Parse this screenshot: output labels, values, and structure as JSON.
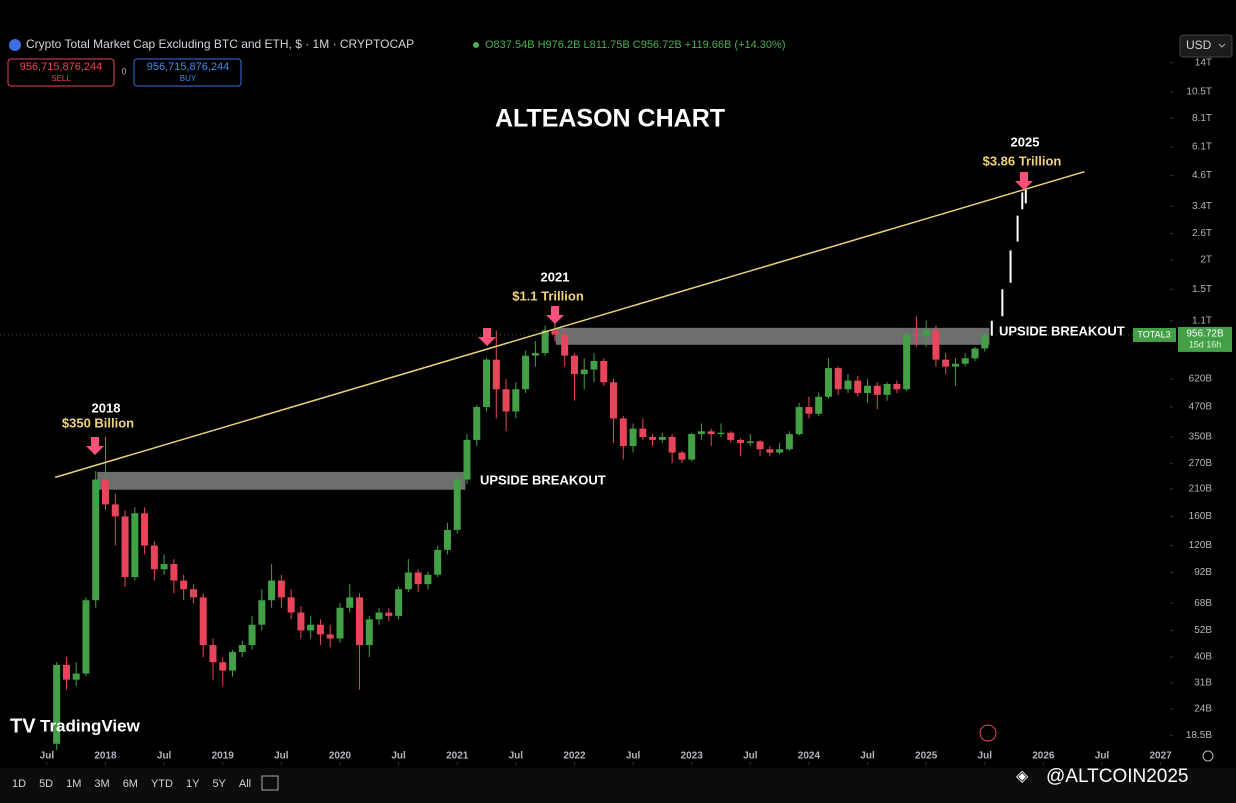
{
  "header": {
    "symbol": "Crypto Total Market Cap Excluding BTC and ETH, $ · 1M · CRYPTOCAP",
    "ohlc": "O837.54B H976.2B L811.75B C956.72B +119.66B (+14.30%)",
    "sell_price": "956,715,876,244",
    "sell": "SELL",
    "spread": 0,
    "buy_price": "956,715,876,244",
    "buy": "BUY",
    "currency": "USD"
  },
  "chart_data": {
    "type": "candlestick",
    "title": "ALTEASON CHART",
    "y_scale": "log",
    "ylim": [
      13.8,
      15100
    ],
    "yticks": [
      {
        "value": 14000,
        "label": "14T"
      },
      {
        "value": 10500,
        "label": "10.5T"
      },
      {
        "value": 8100,
        "label": "8.1T"
      },
      {
        "value": 6100,
        "label": "6.1T"
      },
      {
        "value": 4600,
        "label": "4.6T"
      },
      {
        "value": 3400,
        "label": "3.4T"
      },
      {
        "value": 2600,
        "label": "2.6T"
      },
      {
        "value": 2000,
        "label": "2T"
      },
      {
        "value": 1500,
        "label": "1.5T"
      },
      {
        "value": 1100,
        "label": "1.1T"
      },
      {
        "value": 620,
        "label": "620B"
      },
      {
        "value": 470,
        "label": "470B"
      },
      {
        "value": 350,
        "label": "350B"
      },
      {
        "value": 270,
        "label": "270B"
      },
      {
        "value": 210,
        "label": "210B"
      },
      {
        "value": 160,
        "label": "160B"
      },
      {
        "value": 120,
        "label": "120B"
      },
      {
        "value": 92,
        "label": "92B"
      },
      {
        "value": 68,
        "label": "68B"
      },
      {
        "value": 52,
        "label": "52B"
      },
      {
        "value": 40,
        "label": "40B"
      },
      {
        "value": 31,
        "label": "31B"
      },
      {
        "value": 24,
        "label": "24B"
      },
      {
        "value": 18.5,
        "label": "18.5B"
      }
    ],
    "xlim": [
      2017.1,
      2027.08
    ],
    "xticks": [
      {
        "value": 2017.5,
        "label": "Jul"
      },
      2018,
      {
        "value": 2018.5,
        "label": "Jul"
      },
      2019,
      {
        "value": 2019.5,
        "label": "Jul"
      },
      2020,
      {
        "value": 2020.5,
        "label": "Jul"
      },
      2021,
      {
        "value": 2021.5,
        "label": "Jul"
      },
      2022,
      {
        "value": 2022.5,
        "label": "Jul"
      },
      2023,
      {
        "value": 2023.5,
        "label": "Jul"
      },
      2024,
      {
        "value": 2024.5,
        "label": "Jul"
      },
      2025,
      {
        "value": 2025.5,
        "label": "Jul"
      },
      2026,
      {
        "value": 2026.5,
        "label": "Jul"
      },
      2027
    ],
    "candles": {
      "up_color": "#43a047",
      "down_color": "#e8455a",
      "x": [
        "2017-08",
        "2017-09",
        "2017-10",
        "2017-11",
        "2017-12",
        "2018-01",
        "2018-02",
        "2018-03",
        "2018-04",
        "2018-05",
        "2018-06",
        "2018-07",
        "2018-08",
        "2018-09",
        "2018-10",
        "2018-11",
        "2018-12",
        "2019-01",
        "2019-02",
        "2019-03",
        "2019-04",
        "2019-05",
        "2019-06",
        "2019-07",
        "2019-08",
        "2019-09",
        "2019-10",
        "2019-11",
        "2019-12",
        "2020-01",
        "2020-02",
        "2020-03",
        "2020-04",
        "2020-05",
        "2020-06",
        "2020-07",
        "2020-08",
        "2020-09",
        "2020-10",
        "2020-11",
        "2020-12",
        "2021-01",
        "2021-02",
        "2021-03",
        "2021-04",
        "2021-05",
        "2021-06",
        "2021-07",
        "2021-08",
        "2021-09",
        "2021-10",
        "2021-11",
        "2021-12",
        "2022-01",
        "2022-02",
        "2022-03",
        "2022-04",
        "2022-05",
        "2022-06",
        "2022-07",
        "2022-08",
        "2022-09",
        "2022-10",
        "2022-11",
        "2022-12",
        "2023-01",
        "2023-02",
        "2023-03",
        "2023-04",
        "2023-05",
        "2023-06",
        "2023-07",
        "2023-08",
        "2023-09",
        "2023-10",
        "2023-11",
        "2023-12",
        "2024-01",
        "2024-02",
        "2024-03",
        "2024-04",
        "2024-05",
        "2024-06",
        "2024-07",
        "2024-08",
        "2024-09",
        "2024-10",
        "2024-11",
        "2024-12",
        "2025-01",
        "2025-02",
        "2025-03",
        "2025-04",
        "2025-05",
        "2025-06",
        "2025-07"
      ],
      "open": [
        17,
        37,
        32,
        34,
        70,
        230,
        180,
        160,
        88,
        165,
        120,
        95,
        100,
        85,
        78,
        72,
        45,
        38,
        35,
        42,
        45,
        55,
        70,
        85,
        72,
        62,
        52,
        55,
        50,
        48,
        65,
        72,
        45,
        58,
        62,
        60,
        78,
        92,
        82,
        90,
        115,
        140,
        230,
        340,
        470,
        750,
        560,
        450,
        560,
        780,
        800,
        1000,
        960,
        780,
        650,
        680,
        740,
        600,
        420,
        320,
        380,
        350,
        340,
        350,
        300,
        280,
        360,
        370,
        360,
        365,
        340,
        330,
        335,
        310,
        300,
        310,
        360,
        470,
        440,
        520,
        690,
        560,
        610,
        540,
        580,
        530,
        590,
        560,
        960,
        950,
        1000,
        750,
        700,
        720,
        760,
        837.54
      ],
      "high": [
        38,
        40,
        38,
        72,
        250,
        350,
        200,
        170,
        175,
        175,
        125,
        110,
        105,
        90,
        82,
        75,
        48,
        40,
        43,
        47,
        60,
        78,
        100,
        90,
        78,
        66,
        60,
        58,
        55,
        68,
        82,
        75,
        60,
        65,
        65,
        80,
        105,
        95,
        93,
        120,
        150,
        240,
        360,
        480,
        760,
        1000,
        620,
        600,
        820,
        900,
        1050,
        1130,
        1000,
        800,
        760,
        800,
        760,
        620,
        430,
        400,
        420,
        360,
        365,
        360,
        305,
        365,
        400,
        380,
        400,
        370,
        345,
        360,
        340,
        320,
        330,
        370,
        490,
        520,
        540,
        760,
        700,
        650,
        640,
        620,
        600,
        600,
        610,
        980,
        1150,
        1100,
        1050,
        800,
        760,
        800,
        850,
        976.2
      ],
      "low": [
        16,
        29,
        30,
        33,
        65,
        170,
        120,
        80,
        85,
        110,
        85,
        90,
        75,
        70,
        68,
        40,
        32,
        30,
        33,
        40,
        43,
        52,
        65,
        65,
        58,
        48,
        48,
        45,
        44,
        46,
        62,
        29,
        40,
        55,
        57,
        58,
        76,
        76,
        78,
        88,
        110,
        135,
        220,
        320,
        450,
        420,
        370,
        420,
        540,
        700,
        780,
        900,
        700,
        500,
        560,
        600,
        580,
        330,
        280,
        300,
        340,
        320,
        330,
        270,
        270,
        275,
        340,
        320,
        350,
        330,
        290,
        320,
        290,
        290,
        295,
        305,
        355,
        420,
        430,
        510,
        530,
        540,
        520,
        490,
        460,
        500,
        540,
        550,
        850,
        850,
        700,
        650,
        580,
        700,
        740,
        811.75
      ],
      "close": [
        37,
        32,
        34,
        70,
        230,
        180,
        160,
        88,
        165,
        120,
        95,
        100,
        85,
        78,
        72,
        45,
        38,
        35,
        42,
        45,
        55,
        70,
        85,
        72,
        62,
        52,
        55,
        50,
        48,
        65,
        72,
        45,
        58,
        62,
        60,
        78,
        92,
        82,
        90,
        115,
        140,
        230,
        340,
        470,
        750,
        560,
        450,
        560,
        780,
        800,
        1000,
        960,
        780,
        650,
        680,
        740,
        600,
        420,
        320,
        380,
        350,
        340,
        350,
        300,
        280,
        360,
        370,
        360,
        365,
        340,
        330,
        335,
        310,
        300,
        310,
        360,
        470,
        440,
        520,
        690,
        560,
        610,
        540,
        580,
        530,
        590,
        560,
        960,
        950,
        1000,
        750,
        700,
        720,
        760,
        837.06,
        956.72
      ]
    },
    "projection": {
      "color": "#ffffff",
      "x": [
        2025.56,
        2025.65,
        2025.72,
        2025.78,
        2025.82,
        2025.85
      ],
      "low": [
        950,
        1150,
        1600,
        2400,
        3300,
        3500
      ],
      "high": [
        1100,
        1500,
        2200,
        3100,
        3900,
        4000
      ]
    },
    "trendline": {
      "color": "#e8d27a",
      "x": [
        2017.57,
        2026.35
      ],
      "values": [
        235,
        4780
      ]
    },
    "zones": [
      {
        "color": "#8a8a8a",
        "x": [
          2017.93,
          2021.07
        ],
        "values": [
          248,
          208
        ]
      },
      {
        "color": "#8a8a8a",
        "x": [
          2021.84,
          2025.54
        ],
        "values": [
          1026,
          868
        ]
      }
    ],
    "price_line": {
      "name": "TOTAL3",
      "value": 956.72,
      "label": "956.72B",
      "countdown": "15d 16h",
      "color": "#43a047"
    },
    "annotations": [
      {
        "title": "2018",
        "subtitle": "$350 Billion"
      },
      {
        "title": "2021",
        "subtitle": "$1.1 Trillion"
      },
      {
        "title": "2025",
        "subtitle": "$3.86 Trillion"
      },
      {
        "title": "UPSIDE BREAKOUT"
      },
      {
        "title": "UPSIDE BREAKOUT"
      }
    ]
  },
  "toolbar": [
    "1D",
    "5D",
    "1M",
    "3M",
    "6M",
    "YTD",
    "1Y",
    "5Y",
    "All"
  ],
  "branding": "TradingView",
  "watermark": "@ALTCOIN2025"
}
